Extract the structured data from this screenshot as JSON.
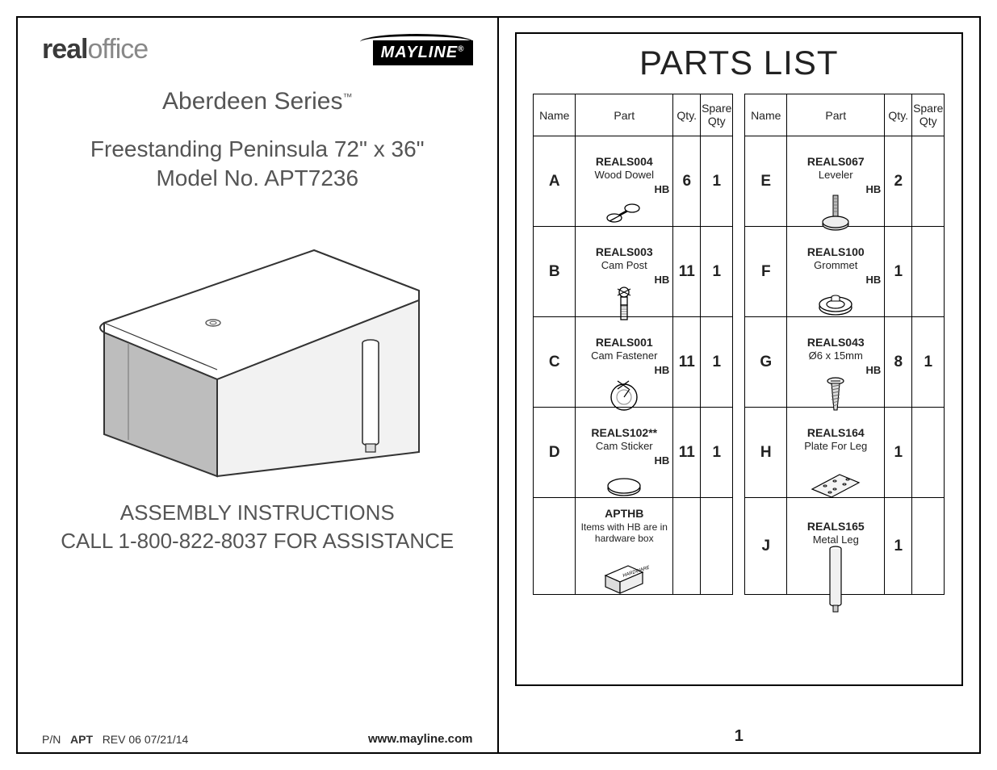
{
  "brand_left_bold": "real",
  "brand_left_light": "office",
  "brand_right": "MAYLINE",
  "brand_right_mark": "®",
  "series": "Aberdeen Series",
  "series_mark": "™",
  "product_line1": "Freestanding Peninsula 72\" x 36\"",
  "product_line2": "Model No. APT7236",
  "assist_line1": "ASSEMBLY INSTRUCTIONS",
  "assist_line2": "CALL 1-800-822-8037 FOR ASSISTANCE",
  "footer_pn_label": "P/N",
  "footer_pn": "APT",
  "footer_rev": "REV 06   07/21/14",
  "footer_url": "www.mayline.com",
  "parts_title": "PARTS LIST",
  "page_number": "1",
  "headers": {
    "name": "Name",
    "part": "Part",
    "qty": "Qty.",
    "spare": "Spare\nQty"
  },
  "parts_left": [
    {
      "name": "A",
      "hb": "HB",
      "code": "REALS004",
      "desc": "Wood Dowel",
      "qty": "6",
      "spare": "1",
      "icon": "dowel"
    },
    {
      "name": "B",
      "hb": "HB",
      "code": "REALS003",
      "desc": "Cam Post",
      "qty": "11",
      "spare": "1",
      "icon": "campost"
    },
    {
      "name": "C",
      "hb": "HB",
      "code": "REALS001",
      "desc": "Cam Fastener",
      "qty": "11",
      "spare": "1",
      "icon": "cam"
    },
    {
      "name": "D",
      "hb": "HB",
      "code": "REALS102**",
      "desc": "Cam Sticker",
      "qty": "11",
      "spare": "1",
      "icon": "sticker"
    },
    {
      "name": "",
      "hb": "",
      "code": "APTHB",
      "desc": "",
      "qty": "",
      "spare": "",
      "icon": "hwbox",
      "note": "Items with HB are in hardware box"
    }
  ],
  "parts_right": [
    {
      "name": "E",
      "hb": "HB",
      "code": "REALS067",
      "desc": "Leveler",
      "qty": "2",
      "spare": "",
      "icon": "leveler"
    },
    {
      "name": "F",
      "hb": "HB",
      "code": "REALS100",
      "desc": "Grommet",
      "qty": "1",
      "spare": "",
      "icon": "grommet"
    },
    {
      "name": "G",
      "hb": "HB",
      "code": "REALS043",
      "desc": "Ø6 x 15mm",
      "qty": "8",
      "spare": "1",
      "icon": "screw"
    },
    {
      "name": "H",
      "hb": "",
      "code": "REALS164",
      "desc": "Plate For Leg",
      "qty": "1",
      "spare": "",
      "icon": "plate"
    },
    {
      "name": "J",
      "hb": "",
      "code": "REALS165",
      "desc": "Metal Leg",
      "qty": "1",
      "spare": "",
      "icon": "leg"
    }
  ],
  "icons": {
    "dowel": "<svg width='60' height='38' viewBox='0 0 60 38'><ellipse cx='18' cy='24' rx='9' ry='5' fill='none' stroke='#000' stroke-width='1.3'/><line x1='24' y1='20' x2='46' y2='8' stroke='#000' stroke-width='1.3'/><line x1='12' y1='28' x2='34' y2='16' stroke='#000' stroke-width='1.3'/><ellipse cx='40' cy='12' rx='9' ry='5' fill='#fff' stroke='#000' stroke-width='1.3'/></svg>",
    "campost": "<svg width='40' height='50' viewBox='0 0 40 50'><line x1='12' y1='6' x2='28' y2='14' stroke='#000'/><line x1='28' y1='6' x2='12' y2='14' stroke='#000'/><circle cx='20' cy='10' r='6' fill='none' stroke='#000' stroke-width='1.3'/><rect x='16' y='16' width='8' height='10' fill='none' stroke='#000' stroke-width='1.3'/><path d='M16 28 h8 M16 31 h8 M16 34 h8 M16 37 h8 M16 40 h8' stroke='#777' stroke-width='1'/><rect x='16' y='26' width='8' height='18' fill='none' stroke='#000' stroke-width='1.3'/></svg>",
    "cam": "<svg width='50' height='50' viewBox='0 0 50 50'><circle cx='25' cy='28' r='16' fill='none' stroke='#000' stroke-width='1.4'/><circle cx='25' cy='28' r='9' fill='none' stroke='#888' stroke-width='1'/><line x1='17' y1='8' x2='31' y2='18' stroke='#000' stroke-width='1.3'/><line x1='31' y1='8' x2='17' y2='18' stroke='#000' stroke-width='1.3'/><path d='M25 28 l7 -10' stroke='#000' stroke-width='1.2'/></svg>",
    "sticker": "<svg width='54' height='40' viewBox='0 0 54 40'><ellipse cx='27' cy='24' rx='20' ry='9' fill='none' stroke='#000' stroke-width='1.3'/><ellipse cx='27' cy='21' rx='20' ry='9' fill='#fff' stroke='#000' stroke-width='1.3'/></svg>",
    "hwbox": "<svg width='62' height='44' viewBox='0 0 62 44'><polygon points='8,18 36,6 54,14 26,26' fill='#fff' stroke='#000' stroke-width='1.2'/><polygon points='8,18 26,26 26,40 8,32' fill='#ddd' stroke='#000' stroke-width='1.2'/><polygon points='26,26 54,14 54,28 26,40' fill='#eee' stroke='#000' stroke-width='1.2'/><text x='30' y='20' font-size='6' font-style='italic' transform='rotate(-18 30 20)'>HARDWARE</text></svg>",
    "leveler": "<svg width='50' height='54' viewBox='0 0 50 54'><rect x='22' y='4' width='6' height='26' fill='#bbb' stroke='#000' stroke-width='1'/><path d='M22 8 h6 M22 12 h6 M22 16 h6 M22 20 h6 M22 24 h6' stroke='#666' stroke-width='0.8'/><ellipse cx='25' cy='40' rx='16' ry='7' fill='#ddd' stroke='#000' stroke-width='1.2'/><ellipse cx='25' cy='37' rx='16' ry='7' fill='#eee' stroke='#000' stroke-width='1.2'/></svg>",
    "grommet": "<svg width='54' height='44' viewBox='0 0 54 44'><ellipse cx='27' cy='26' rx='20' ry='9' fill='none' stroke='#000' stroke-width='1.3'/><ellipse cx='27' cy='22' rx='20' ry='9' fill='#fff' stroke='#000' stroke-width='1.3'/><ellipse cx='27' cy='22' rx='11' ry='5' fill='none' stroke='#000' stroke-width='1.2'/><path d='M22 13 a5 2 0 0 1 10 0 v5 h-10 z' fill='#fff' stroke='#000' stroke-width='1.1'/></svg>",
    "screw": "<svg width='36' height='50' viewBox='0 0 36 50'><ellipse cx='18' cy='8' rx='10' ry='4' fill='#eee' stroke='#000' stroke-width='1.2'/><line x1='12' y1='8' x2='24' y2='8' stroke='#000'/><path d='M13 11 L23 11 L20 44 L16 44 Z' fill='#ddd' stroke='#000' stroke-width='1.1'/><path d='M13 15 l10 -2 M13 19 l10 -2 M13 23 l10 -2 M13 27 l10 -2 M13 31 l10 -2 M14 35 l8 -2 M15 39 l6 -2' stroke='#666' stroke-width='0.9'/></svg>",
    "plate": "<svg width='70' height='46' viewBox='0 0 70 46'><polygon points='6,28 40,10 64,20 30,38' fill='#f4f4f4' stroke='#000' stroke-width='1.2'/><ellipse cx='22' cy='24' rx='2' ry='1' fill='none' stroke='#000'/><ellipse cx='34' cy='18' rx='2' ry='1' fill='none' stroke='#000'/><ellipse cx='46' cy='22' rx='2' ry='1' fill='none' stroke='#000'/><ellipse cx='34' cy='28' rx='2' ry='1' fill='none' stroke='#000'/><ellipse cx='28' cy='32' rx='2' ry='1' fill='none' stroke='#000'/><ellipse cx='50' cy='16' rx='2' ry='1' fill='none' stroke='#000'/></svg>",
    "leg": "<svg width='30' height='90' viewBox='0 0 30 90'><ellipse cx='15' cy='8' rx='7' ry='3' fill='#fff' stroke='#000' stroke-width='1.2'/><path d='M8 8 L8 76 A7 3 0 0 0 22 76 L22 8' fill='#f0f0f0' stroke='#000' stroke-width='1.2'/><rect x='12' y='78' width='6' height='8' fill='#ccc' stroke='#000' stroke-width='1'/></svg>"
  }
}
